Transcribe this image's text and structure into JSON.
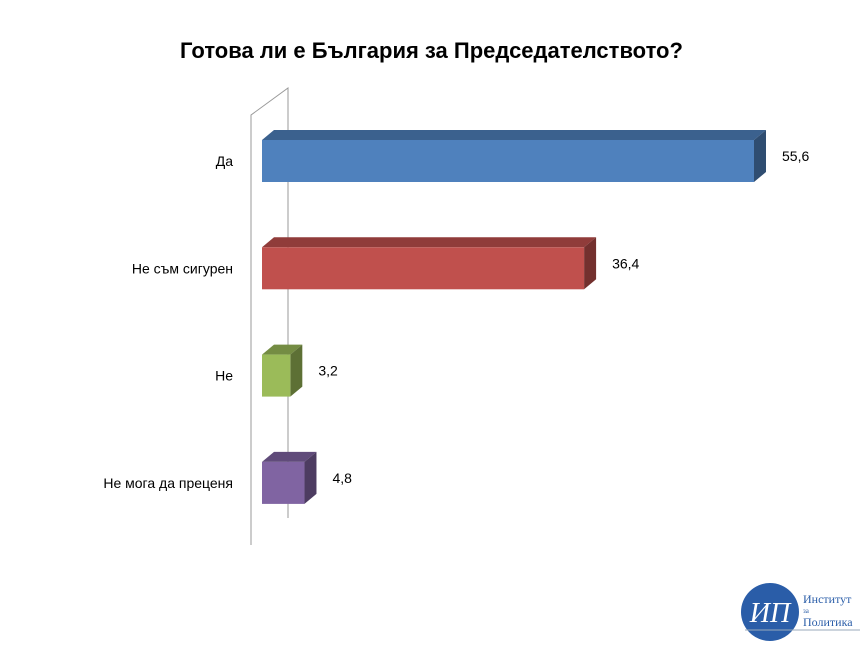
{
  "chart_data": {
    "type": "bar",
    "orientation": "horizontal",
    "style": "3d",
    "title": "Готова ли е България за Председателството?",
    "categories": [
      "Да",
      "Не съм сигурен",
      "Не",
      "Не мога да преценя"
    ],
    "values": [
      55.6,
      36.4,
      3.2,
      4.8
    ],
    "value_labels": [
      "55,6",
      "36,4",
      "3,2",
      "4,8"
    ],
    "colors": [
      "#4f81bd",
      "#c0504d",
      "#9bbb59",
      "#8064a2"
    ],
    "grid": false,
    "legend": "none"
  },
  "logo": {
    "initials": "ИП",
    "line1": "Институт",
    "line2": "за",
    "line3": "Политика",
    "color": "#2a5da8"
  }
}
